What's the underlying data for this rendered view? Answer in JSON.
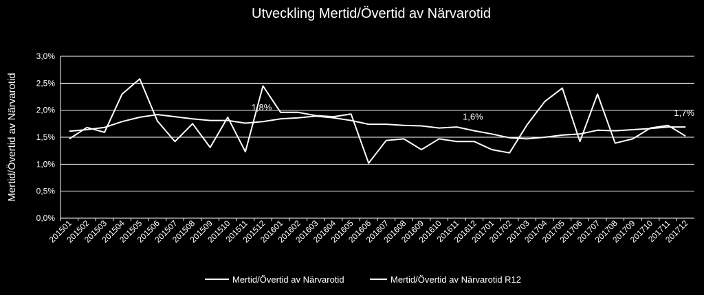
{
  "chart_data": {
    "type": "line",
    "title": "Utveckling Mertid/Övertid av Närvarotid",
    "xlabel": "",
    "ylabel": "Mertid/Övertid av Närvarotid",
    "ylim": [
      0,
      3.0
    ],
    "yticks": [
      "0,0%",
      "0,5%",
      "1,0%",
      "1,5%",
      "2,0%",
      "2,5%",
      "3,0%"
    ],
    "grid": true,
    "legend_position": "bottom",
    "line_color": "#ffffff",
    "categories": [
      "201501",
      "201502",
      "201503",
      "201504",
      "201505",
      "201506",
      "201507",
      "201508",
      "201509",
      "201510",
      "201511",
      "201512",
      "201601",
      "201602",
      "201603",
      "201604",
      "201605",
      "201606",
      "201607",
      "201608",
      "201609",
      "201610",
      "201611",
      "201612",
      "201701",
      "201702",
      "201703",
      "201704",
      "201705",
      "201706",
      "201707",
      "201708",
      "201709",
      "201710",
      "201711",
      "201712"
    ],
    "series": [
      {
        "name": "Mertid/Övertid av Närvarotid",
        "values": [
          1.47,
          1.68,
          1.59,
          2.3,
          2.58,
          1.8,
          1.42,
          1.75,
          1.31,
          1.87,
          1.23,
          2.45,
          1.96,
          1.96,
          1.9,
          1.88,
          1.93,
          1.02,
          1.44,
          1.47,
          1.27,
          1.47,
          1.42,
          1.42,
          1.27,
          1.21,
          1.73,
          2.16,
          2.41,
          1.42,
          2.3,
          1.39,
          1.47,
          1.67,
          1.72,
          1.52
        ]
      },
      {
        "name": "Mertid/Övertid av Närvarotid R12",
        "values": [
          1.61,
          1.64,
          1.68,
          1.79,
          1.87,
          1.92,
          1.88,
          1.84,
          1.81,
          1.81,
          1.76,
          1.79,
          1.84,
          1.86,
          1.89,
          1.86,
          1.81,
          1.74,
          1.74,
          1.72,
          1.71,
          1.67,
          1.69,
          1.62,
          1.56,
          1.49,
          1.47,
          1.5,
          1.54,
          1.56,
          1.63,
          1.62,
          1.64,
          1.66,
          1.69,
          1.69
        ]
      }
    ],
    "annotations": [
      {
        "text": "1,8%",
        "category": "201512",
        "value": 1.79
      },
      {
        "text": "1,6%",
        "category": "201612",
        "value": 1.62
      },
      {
        "text": "1,7%",
        "category": "201712",
        "value": 1.69
      }
    ]
  }
}
